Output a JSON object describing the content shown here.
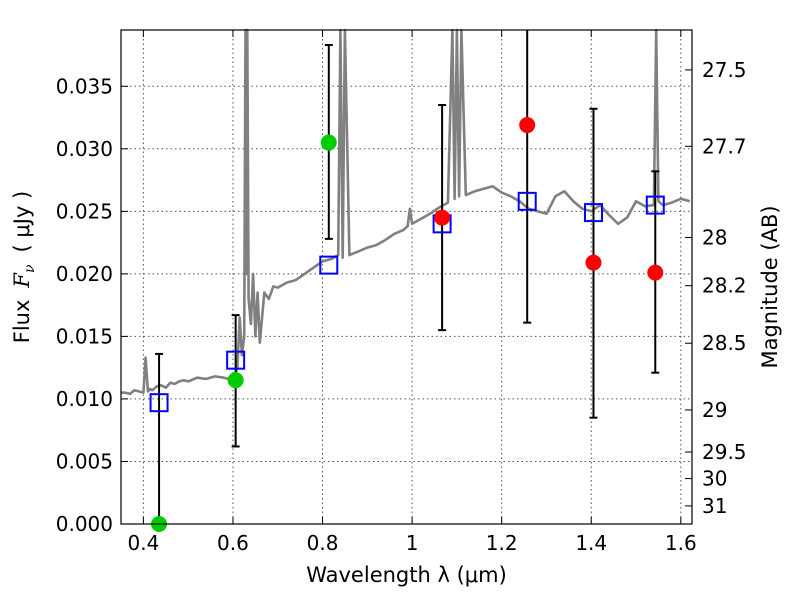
{
  "chart_data": {
    "type": "scatter",
    "xlabel": "Wavelength  λ (μm)",
    "ylabel_text": "Flux",
    "ylabel_symbol": "F",
    "ylabel_subscript": "ν",
    "ylabel_unit": "( μJy )",
    "y2label": "Magnitude (AB)",
    "xlim": [
      0.35,
      1.625
    ],
    "ylim": [
      0.0,
      0.0395
    ],
    "grid": true,
    "x_ticks": [
      0.4,
      0.6,
      0.8,
      1.0,
      1.2,
      1.4,
      1.6
    ],
    "x_tick_labels": [
      "0.4",
      "0.6",
      "0.8",
      "1",
      "1.2",
      "1.4",
      "1.6"
    ],
    "y_ticks": [
      0.0,
      0.005,
      0.01,
      0.015,
      0.02,
      0.025,
      0.03,
      0.035
    ],
    "y_tick_labels": [
      "0.000",
      "0.005",
      "0.010",
      "0.015",
      "0.020",
      "0.025",
      "0.030",
      "0.035"
    ],
    "y2_ticks": [
      {
        "mag": 27.5,
        "label": "27.5"
      },
      {
        "mag": 27.7,
        "label": "27.7"
      },
      {
        "mag": 28.0,
        "label": "28"
      },
      {
        "mag": 28.2,
        "label": "28.2"
      },
      {
        "mag": 28.5,
        "label": "28.5"
      },
      {
        "mag": 29.0,
        "label": "29"
      },
      {
        "mag": 29.5,
        "label": "29.5"
      },
      {
        "mag": 30.0,
        "label": "30"
      },
      {
        "mag": 31.0,
        "label": "31"
      }
    ],
    "model_spectrum": {
      "color": "#808080",
      "x": [
        0.35,
        0.36,
        0.37,
        0.38,
        0.39,
        0.4,
        0.405,
        0.41,
        0.415,
        0.42,
        0.43,
        0.44,
        0.45,
        0.46,
        0.47,
        0.48,
        0.49,
        0.5,
        0.52,
        0.54,
        0.56,
        0.58,
        0.6,
        0.61,
        0.615,
        0.62,
        0.625,
        0.628,
        0.63,
        0.632,
        0.635,
        0.64,
        0.645,
        0.65,
        0.655,
        0.66,
        0.67,
        0.68,
        0.69,
        0.7,
        0.72,
        0.74,
        0.76,
        0.78,
        0.8,
        0.82,
        0.835,
        0.84,
        0.845,
        0.85,
        0.86,
        0.88,
        0.9,
        0.92,
        0.94,
        0.96,
        0.98,
        0.99,
        0.995,
        1.0,
        1.02,
        1.04,
        1.06,
        1.08,
        1.09,
        1.095,
        1.1,
        1.105,
        1.11,
        1.12,
        1.14,
        1.16,
        1.18,
        1.2,
        1.22,
        1.24,
        1.26,
        1.28,
        1.3,
        1.32,
        1.34,
        1.36,
        1.38,
        1.4,
        1.42,
        1.44,
        1.46,
        1.48,
        1.5,
        1.52,
        1.54,
        1.545,
        1.55,
        1.56,
        1.58,
        1.6,
        1.62
      ],
      "y": [
        0.0105,
        0.0105,
        0.0104,
        0.0107,
        0.0106,
        0.0105,
        0.0133,
        0.0106,
        0.0108,
        0.0107,
        0.011,
        0.0111,
        0.0109,
        0.0113,
        0.0112,
        0.0114,
        0.0115,
        0.0114,
        0.0117,
        0.0116,
        0.0118,
        0.0117,
        0.0115,
        0.0125,
        0.0165,
        0.0135,
        0.015,
        0.0395,
        0.02,
        0.0395,
        0.018,
        0.016,
        0.02,
        0.015,
        0.0185,
        0.0145,
        0.0185,
        0.018,
        0.019,
        0.0189,
        0.0193,
        0.0195,
        0.02,
        0.0205,
        0.021,
        0.0212,
        0.0215,
        0.0395,
        0.0213,
        0.0395,
        0.0215,
        0.0218,
        0.0221,
        0.0223,
        0.0227,
        0.0232,
        0.0235,
        0.0238,
        0.0252,
        0.024,
        0.0244,
        0.0248,
        0.0253,
        0.0257,
        0.0395,
        0.026,
        0.0395,
        0.0262,
        0.0395,
        0.0263,
        0.0266,
        0.0268,
        0.027,
        0.0265,
        0.0262,
        0.0258,
        0.0252,
        0.025,
        0.0248,
        0.0262,
        0.0266,
        0.0258,
        0.0252,
        0.025,
        0.0255,
        0.0247,
        0.024,
        0.0245,
        0.0258,
        0.0254,
        0.0255,
        0.0395,
        0.0258,
        0.0255,
        0.0257,
        0.026,
        0.0258
      ]
    },
    "series": [
      {
        "kind": "model_photometry",
        "marker": "open-square",
        "color": "#0000ff",
        "x": [
          0.435,
          0.606,
          0.814,
          1.067,
          1.257,
          1.405,
          1.543
        ],
        "y": [
          0.0097,
          0.0131,
          0.0207,
          0.024,
          0.0258,
          0.0249,
          0.0255
        ]
      },
      {
        "kind": "detections",
        "marker": "filled-circle",
        "color": "#00cc00",
        "x": [
          0.435,
          0.606,
          0.814
        ],
        "y": [
          0.0,
          0.0115,
          0.0305
        ]
      },
      {
        "kind": "detections",
        "marker": "filled-circle",
        "color": "#ff0000",
        "x": [
          1.067,
          1.257,
          1.405,
          1.543
        ],
        "y": [
          0.0245,
          0.0319,
          0.0209,
          0.0201
        ]
      }
    ],
    "error_bars": {
      "color": "#000000",
      "x": [
        0.435,
        0.606,
        0.814,
        1.067,
        1.257,
        1.405,
        1.543
      ],
      "low": [
        0.0,
        0.0062,
        0.0228,
        0.0155,
        0.0161,
        0.0085,
        0.0121
      ],
      "high": [
        0.0136,
        0.0167,
        0.0383,
        0.0335,
        0.0395,
        0.0332,
        0.0282
      ]
    }
  }
}
